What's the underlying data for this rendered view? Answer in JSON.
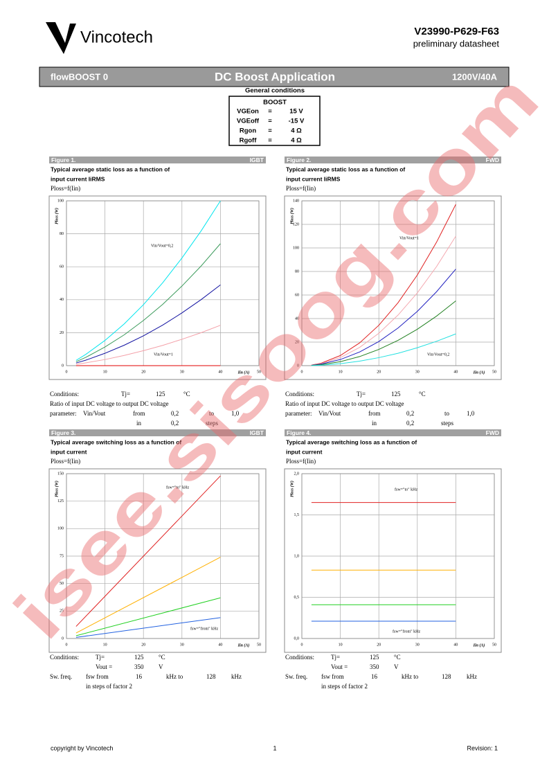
{
  "header": {
    "logo": "Vincotech",
    "part_number": "V23990-P629-F63",
    "subtitle": "preliminary datasheet"
  },
  "banner": {
    "left": "flowBOOST 0",
    "center": "DC Boost Application",
    "right": "1200V/40A"
  },
  "general_conditions": {
    "title": "General conditions",
    "table": {
      "header": "BOOST",
      "rows": [
        [
          "VGEon",
          "=",
          "15 V"
        ],
        [
          "VGEoff",
          "=",
          "-15 V"
        ],
        [
          "Rgon",
          "=",
          "4 Ω"
        ],
        [
          "Rgoff",
          "=",
          "4 Ω"
        ]
      ]
    }
  },
  "figures": [
    {
      "label": "Figure 1.",
      "tag": "IGBT",
      "title": [
        "Typical average static loss as a function of",
        "input current IiRMS"
      ],
      "formula": "Ploss=f(Iin)",
      "chart": {
        "type": "line",
        "y_label": "Ploss (W)",
        "x_label": "Iin (A)",
        "xlim": [
          0,
          50
        ],
        "xticks": [
          0,
          10,
          20,
          30,
          40,
          50
        ],
        "ylim": [
          0,
          100
        ],
        "yticks": [
          0,
          20,
          40,
          60,
          80,
          100
        ],
        "grid": true,
        "x": [
          2.5,
          5,
          10,
          15,
          20,
          25,
          30,
          35,
          40
        ],
        "series": [
          {
            "color": "#00e5ee",
            "values": [
              3.2,
              6.8,
              15.3,
              25.3,
              37,
              50.3,
              65.3,
              81.8,
              100
            ]
          },
          {
            "color": "#3a9a5a",
            "values": [
              2.4,
              5.0,
              11.3,
              18.7,
              27.4,
              37.2,
              48.3,
              60.5,
              74
            ]
          },
          {
            "color": "#1010a0",
            "values": [
              1.6,
              3.3,
              7.5,
              12.4,
              18.1,
              24.6,
              32.0,
              40.1,
              49
            ]
          },
          {
            "color": "#f4a0a8",
            "values": [
              0.8,
              1.7,
              3.7,
              6.2,
              9.1,
              12.3,
              16.0,
              20.0,
              24.5
            ]
          },
          {
            "color": "#e00000",
            "values": [
              0,
              0,
              0,
              0,
              0,
              0,
              0,
              0,
              0
            ]
          }
        ],
        "annotations": [
          "Vin/Vout=0,2",
          "Vin/Vout=1"
        ]
      },
      "conditions": [
        [
          "Conditions:",
          "Tj=",
          "125",
          "°C"
        ],
        [
          "Ratio of input DC voltage to output DC voltage"
        ],
        [
          "parameter:",
          "Vin/Vout",
          "from",
          "0,2",
          "to",
          "1,0"
        ],
        [
          "in",
          "0,2",
          "steps"
        ]
      ]
    },
    {
      "label": "Figure 2.",
      "tag": "FWD",
      "title": [
        "Typical average static loss as a function of",
        "input current IiRMS"
      ],
      "formula": "Ploss=f(Iin)",
      "chart": {
        "type": "line",
        "y_label": "Ploss (W)",
        "x_label": "Iin (A)",
        "xlim": [
          0,
          50
        ],
        "xticks": [
          0,
          10,
          20,
          30,
          40,
          50
        ],
        "ylim": [
          0,
          140
        ],
        "yticks": [
          0,
          20,
          40,
          60,
          80,
          100,
          120,
          140
        ],
        "grid": true,
        "x": [
          2.5,
          5,
          10,
          15,
          20,
          25,
          30,
          35,
          40
        ],
        "series": [
          {
            "color": "#e02020",
            "values": [
              0.5,
              2.1,
              8.6,
              19.3,
              34.3,
              53.5,
              77,
              104.9,
              137
            ]
          },
          {
            "color": "#f4a8b0",
            "values": [
              0.4,
              1.7,
              6.9,
              15.5,
              27.5,
              43.0,
              61.8,
              84.2,
              110
            ]
          },
          {
            "color": "#2020c0",
            "values": [
              0.3,
              1.3,
              5.2,
              11.6,
              20.5,
              32.0,
              46.1,
              62.8,
              82
            ]
          },
          {
            "color": "#208020",
            "values": [
              0.2,
              0.8,
              3.4,
              7.7,
              13.8,
              21.5,
              30.9,
              42.1,
              55
            ]
          },
          {
            "color": "#20e0e0",
            "values": [
              0.1,
              0.4,
              1.7,
              3.8,
              6.8,
              10.5,
              15.2,
              20.7,
              27
            ]
          }
        ],
        "annotations": [
          "Vin/Vout=1",
          "Vin/Vout=0,2"
        ]
      },
      "conditions": [
        [
          "Conditions:",
          "Tj=",
          "125",
          "°C"
        ],
        [
          "Ratio of input DC voltage to output DC voltage"
        ],
        [
          "parameter:",
          "Vin/Vout",
          "from",
          "0,2",
          "to",
          "1,0"
        ],
        [
          "in",
          "0,2",
          "steps"
        ]
      ]
    },
    {
      "label": "Figure 3.",
      "tag": "IGBT",
      "title": [
        "Typical average switching loss as a function of",
        "input current"
      ],
      "formula": "Ploss=f(Iin)",
      "chart": {
        "type": "line",
        "y_label": "Ploss (W)",
        "x_label": "Iin (A)",
        "xlim": [
          0,
          50
        ],
        "xticks": [
          0,
          10,
          20,
          30,
          40,
          50
        ],
        "ylim": [
          0,
          150
        ],
        "yticks": [
          0,
          25,
          50,
          75,
          100,
          125,
          150
        ],
        "grid": true,
        "x": [
          2.5,
          40
        ],
        "series": [
          {
            "color": "#e02020",
            "values": [
              11,
              148
            ]
          },
          {
            "color": "#ffb000",
            "values": [
              5,
              74
            ]
          },
          {
            "color": "#20d020",
            "values": [
              2.5,
              37
            ]
          },
          {
            "color": "#2060e0",
            "values": [
              1,
              19
            ]
          }
        ],
        "annotations": [
          "fsw=\"to\" kHz",
          "fsw=\"from\" kHz"
        ]
      },
      "conditions": [
        [
          "Conditions:",
          "Tj=",
          "125",
          "°C"
        ],
        [
          "Vout =",
          "350",
          "V"
        ],
        [
          "Sw. freq.",
          "fsw from",
          "16",
          "kHz to",
          "128",
          "kHz"
        ],
        [
          "in steps of factor 2"
        ]
      ]
    },
    {
      "label": "Figure 4.",
      "tag": "FWD",
      "title": [
        "Typical average switching loss as a function of",
        "input current"
      ],
      "formula": "Ploss=f(Iin)",
      "chart": {
        "type": "line",
        "y_label": "Ploss (W)",
        "x_label": "Iin (A)",
        "xlim": [
          0,
          50
        ],
        "xticks": [
          0,
          10,
          20,
          30,
          40,
          50
        ],
        "ylim": [
          0,
          2
        ],
        "yticks": [
          {
            "value": 0,
            "label": "0,0"
          },
          {
            "value": 0.5,
            "label": "0,5"
          },
          {
            "value": 1,
            "label": "1,0"
          },
          {
            "value": 1.5,
            "label": "1,5"
          },
          {
            "value": 2,
            "label": "2,0"
          }
        ],
        "grid": true,
        "x": [
          2.5,
          40
        ],
        "series": [
          {
            "color": "#e02020",
            "values": [
              1.65,
              1.65
            ]
          },
          {
            "color": "#ffb000",
            "values": [
              0.83,
              0.83
            ]
          },
          {
            "color": "#20d020",
            "values": [
              0.41,
              0.41
            ]
          },
          {
            "color": "#2060e0",
            "values": [
              0.21,
              0.21
            ]
          }
        ],
        "annotations": [
          "fsw=\"to\" kHz",
          "fsw=\"from\" kHz"
        ]
      },
      "conditions": [
        [
          "Conditions:",
          "Tj=",
          "125",
          "°C"
        ],
        [
          "Vout =",
          "350",
          "V"
        ],
        [
          "Sw. freq.",
          "fsw from",
          "16",
          "kHz to",
          "128",
          "kHz"
        ],
        [
          "in steps of factor 2"
        ]
      ]
    }
  ],
  "footer": {
    "left": "copyright by Vincotech",
    "center": "1",
    "right": "Revision: 1"
  },
  "watermark": "isee.sisoog.com"
}
